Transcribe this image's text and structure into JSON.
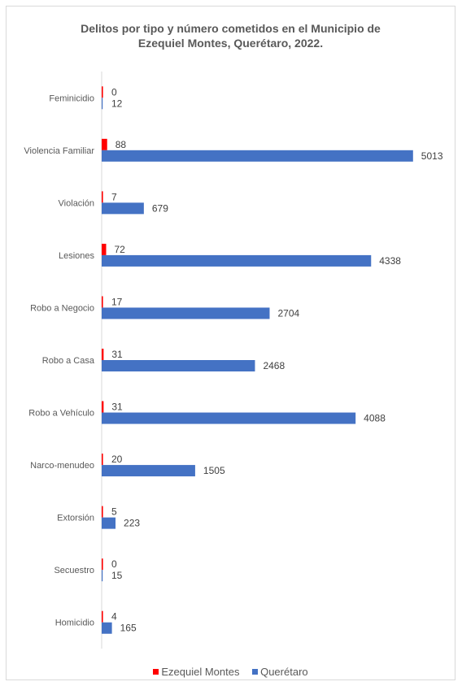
{
  "chart_data": {
    "type": "bar",
    "orientation": "horizontal",
    "title_lines": [
      "Delitos por tipo y número cometidos en el Municipio de",
      "Ezequiel Montes, Querétaro, 2022."
    ],
    "categories": [
      "Feminicidio",
      "Violencia Familiar",
      "Violación",
      "Lesiones",
      "Robo a Negocio",
      "Robo a Casa",
      "Robo a Vehículo",
      "Narco-menudeo",
      "Extorsión",
      "Secuestro",
      "Homicidio"
    ],
    "series": [
      {
        "name": "Ezequiel Montes",
        "color": "#ff0000",
        "values": [
          0,
          88,
          7,
          72,
          17,
          31,
          31,
          20,
          5,
          0,
          4
        ]
      },
      {
        "name": "Querétaro",
        "color": "#4472c4",
        "values": [
          12,
          5013,
          679,
          4338,
          2704,
          2468,
          4088,
          1505,
          223,
          15,
          165
        ]
      }
    ],
    "xlim": [
      0,
      5500
    ],
    "grid": false,
    "legend_position": "bottom"
  }
}
